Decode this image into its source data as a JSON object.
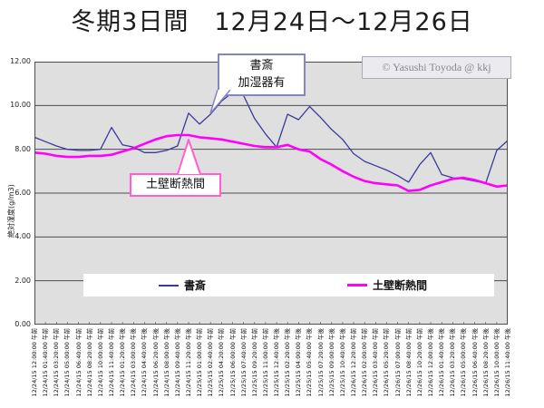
{
  "title": "冬期3日間　12月24日～12月26日",
  "copyright": {
    "text": "© Yasushi Toyoda @ kkj"
  },
  "annotations": {
    "study_callout": {
      "line1": "書斎",
      "line2": "加湿器有"
    },
    "wall_callout": {
      "text": "土壁断熱間"
    }
  },
  "colors": {
    "series1": "#3a3a9c",
    "series2": "#ff00ff",
    "grid": "#4d4d4d",
    "plot_bg": "#dfdfdf",
    "study_callout_border": "#8585c2",
    "wall_callout_border": "#ff5fd0"
  },
  "chart_data": {
    "type": "line",
    "title": "冬期3日間　12月24日～12月26日",
    "xlabel": "",
    "ylabel": "絶対湿度(g/m3)",
    "ylim": [
      0,
      12
    ],
    "y_tick_labels": [
      "12.00",
      "10.00",
      "8.00",
      "6.00",
      "4.00",
      "2.00",
      "0.00"
    ],
    "grid": "horizontal",
    "legend_position": "bottom-inside",
    "categories": [
      "12/24/15 12:00:00 午前",
      "12/24/15 01:40:00 午前",
      "12/24/15 03:20:00 午前",
      "12/24/15 05:00:00 午前",
      "12/24/15 06:40:00 午前",
      "12/24/15 08:20:00 午前",
      "12/24/15 10:00:00 午前",
      "12/24/15 11:40:00 午前",
      "12/24/15 01:20:00 午後",
      "12/24/15 03:00:00 午後",
      "12/24/15 04:40:00 午後",
      "12/24/15 06:20:00 午後",
      "12/24/15 08:00:00 午後",
      "12/24/15 09:40:00 午後",
      "12/24/15 11:20:00 午後",
      "12/25/15 01:00:00 午前",
      "12/25/15 02:40:00 午前",
      "12/25/15 04:20:00 午前",
      "12/25/15 06:00:00 午前",
      "12/25/15 07:40:00 午前",
      "12/25/15 09:20:00 午前",
      "12/25/15 11:00:00 午前",
      "12/25/15 12:40:00 午後",
      "12/25/15 02:20:00 午後",
      "12/25/15 04:00:00 午後",
      "12/25/15 05:40:00 午後",
      "12/25/15 07:20:00 午後",
      "12/25/15 09:00:00 午後",
      "12/25/15 10:40:00 午後",
      "12/26/15 12:20:00 午前",
      "12/26/15 02:00:00 午前",
      "12/26/15 03:40:00 午前",
      "12/26/15 05:20:00 午前",
      "12/26/15 07:00:00 午前",
      "12/26/15 08:40:00 午前",
      "12/26/15 10:20:00 午前",
      "12/26/15 12:00:00 午後",
      "12/26/15 01:40:00 午後",
      "12/26/15 03:20:00 午後",
      "12/26/15 05:00:00 午後",
      "12/26/15 06:40:00 午後",
      "12/26/15 08:20:00 午後",
      "12/26/15 10:00:00 午後",
      "12/26/15 11:40:00 午後"
    ],
    "series": [
      {
        "name": "書斎",
        "values": [
          8.55,
          8.35,
          8.15,
          8.0,
          7.95,
          7.95,
          8.0,
          9.0,
          8.2,
          8.1,
          7.85,
          7.85,
          7.95,
          8.15,
          9.65,
          9.15,
          9.6,
          10.2,
          10.6,
          10.45,
          9.4,
          8.7,
          8.1,
          9.6,
          9.35,
          9.95,
          9.45,
          8.9,
          8.45,
          7.8,
          7.45,
          7.25,
          7.05,
          6.8,
          6.5,
          7.3,
          7.85,
          6.85,
          6.7,
          6.65,
          6.55,
          6.45,
          7.95,
          8.4
        ]
      },
      {
        "name": "土壁断熱間",
        "values": [
          7.85,
          7.8,
          7.7,
          7.65,
          7.65,
          7.7,
          7.7,
          7.75,
          7.9,
          8.05,
          8.25,
          8.45,
          8.6,
          8.65,
          8.65,
          8.55,
          8.5,
          8.45,
          8.35,
          8.25,
          8.15,
          8.1,
          8.1,
          8.2,
          8.0,
          7.9,
          7.55,
          7.3,
          7.0,
          6.75,
          6.55,
          6.45,
          6.4,
          6.35,
          6.1,
          6.15,
          6.35,
          6.5,
          6.65,
          6.7,
          6.6,
          6.45,
          6.3,
          6.35
        ]
      }
    ]
  }
}
